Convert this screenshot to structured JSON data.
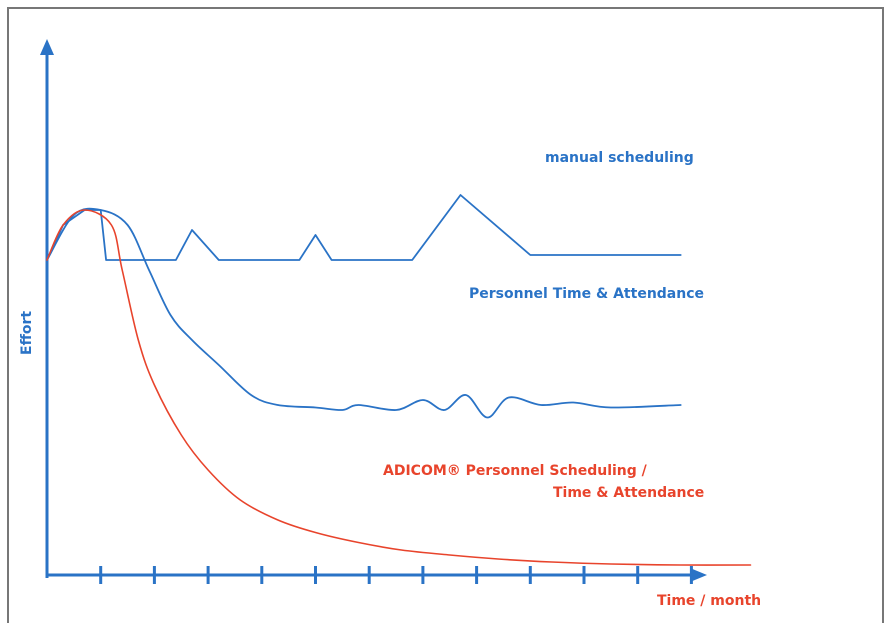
{
  "chart_data": {
    "type": "line",
    "title": "",
    "xlabel": "Time / month",
    "ylabel": "Effort",
    "grid": false,
    "ticks_count": 12,
    "series": [
      {
        "name": "manual scheduling",
        "color": "#2a73c6",
        "x": [
          0,
          0.3,
          0.7,
          1,
          1.1,
          2,
          2.4,
          2.7,
          3.2,
          4.7,
          5,
          5.3,
          6.8,
          7.7,
          9,
          11.8
        ],
        "y": [
          6.3,
          7.0,
          7.3,
          7.3,
          6.3,
          6.3,
          6.3,
          6.9,
          6.3,
          6.3,
          6.8,
          6.3,
          6.3,
          7.6,
          6.4,
          6.4
        ]
      },
      {
        "name": "Personnel Time & Attendance",
        "color": "#2a73c6",
        "x": [
          0,
          0.5,
          1,
          1.5,
          1.9,
          2.3,
          2.7,
          3.2,
          3.8,
          4.3,
          5,
          5.5,
          5.8,
          6.5,
          7,
          7.4,
          7.8,
          8.2,
          8.6,
          9.2,
          9.8,
          10.5,
          11.8
        ],
        "y": [
          6.3,
          7.2,
          7.3,
          7.0,
          6.1,
          5.2,
          4.7,
          4.2,
          3.6,
          3.4,
          3.35,
          3.3,
          3.4,
          3.3,
          3.5,
          3.3,
          3.6,
          3.15,
          3.55,
          3.4,
          3.45,
          3.35,
          3.4
        ]
      },
      {
        "name": "ADICOM® Personnel Scheduling / Time & Attendance",
        "color": "#e8442c",
        "x": [
          0,
          0.3,
          0.7,
          1.2,
          1.4,
          1.7,
          2,
          2.5,
          3,
          3.6,
          4.3,
          5,
          5.8,
          6.6,
          7.5,
          8.4,
          9.4,
          10.5,
          11.8,
          13.1
        ],
        "y": [
          6.3,
          7.0,
          7.3,
          7.0,
          6.1,
          4.7,
          3.8,
          2.8,
          2.1,
          1.5,
          1.1,
          0.85,
          0.65,
          0.5,
          0.4,
          0.32,
          0.26,
          0.22,
          0.2,
          0.2
        ]
      }
    ],
    "annotations": [
      {
        "text": "manual scheduling",
        "color": "#2a73c6"
      },
      {
        "text": "Personnel Time & Attendance",
        "color": "#2a73c6"
      },
      {
        "text": "ADICOM® Personnel Scheduling /",
        "color": "#e8442c"
      },
      {
        "text": "Time & Attendance",
        "color": "#e8442c"
      }
    ]
  }
}
